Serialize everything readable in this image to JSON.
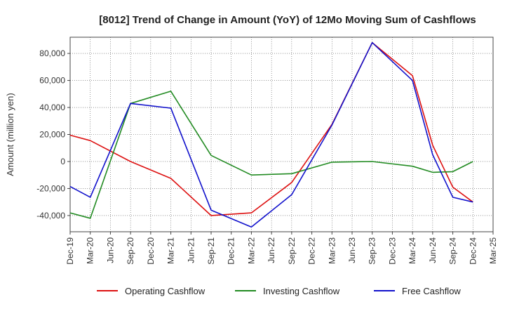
{
  "chart_data": {
    "type": "line",
    "title": "[8012]  Trend of Change in Amount (YoY) of 12Mo Moving Sum of Cashflows",
    "xlabel": "",
    "ylabel": "Amount (million yen)",
    "ylim": [
      -52000,
      92000
    ],
    "yticks": [
      -40000,
      -20000,
      0,
      20000,
      40000,
      60000,
      80000
    ],
    "ytick_labels": [
      "-40,000",
      "-20,000",
      "0",
      "20,000",
      "40,000",
      "60,000",
      "80,000"
    ],
    "categories": [
      "Dec-19",
      "Mar-20",
      "Jun-20",
      "Sep-20",
      "Dec-20",
      "Mar-21",
      "Jun-21",
      "Sep-21",
      "Dec-21",
      "Mar-22",
      "Jun-22",
      "Sep-22",
      "Dec-22",
      "Mar-23",
      "Jun-23",
      "Sep-23",
      "Dec-23",
      "Mar-24",
      "Jun-24",
      "Sep-24",
      "Dec-24",
      "Mar-25"
    ],
    "grid": true,
    "legend_position": "bottom",
    "series": [
      {
        "name": "Operating Cashflow",
        "color": "#dd1111",
        "values": [
          19500,
          15500,
          null,
          0,
          null,
          -12500,
          null,
          -40000,
          null,
          -38000,
          null,
          -15500,
          null,
          27500,
          null,
          88000,
          null,
          63500,
          12000,
          -19000,
          -30000,
          null
        ]
      },
      {
        "name": "Investing Cashflow",
        "color": "#228b22",
        "values": [
          -38000,
          -42000,
          null,
          43000,
          null,
          52000,
          null,
          4500,
          null,
          -10000,
          null,
          -9000,
          null,
          -500,
          null,
          0,
          null,
          -3500,
          -8000,
          -7500,
          0,
          null
        ]
      },
      {
        "name": "Free Cashflow",
        "color": "#1111cc",
        "values": [
          -18500,
          -26500,
          null,
          43000,
          null,
          39500,
          null,
          -36000,
          null,
          -48500,
          null,
          -24500,
          null,
          27000,
          null,
          88000,
          null,
          60000,
          5000,
          -26500,
          -30000,
          null
        ]
      }
    ]
  }
}
